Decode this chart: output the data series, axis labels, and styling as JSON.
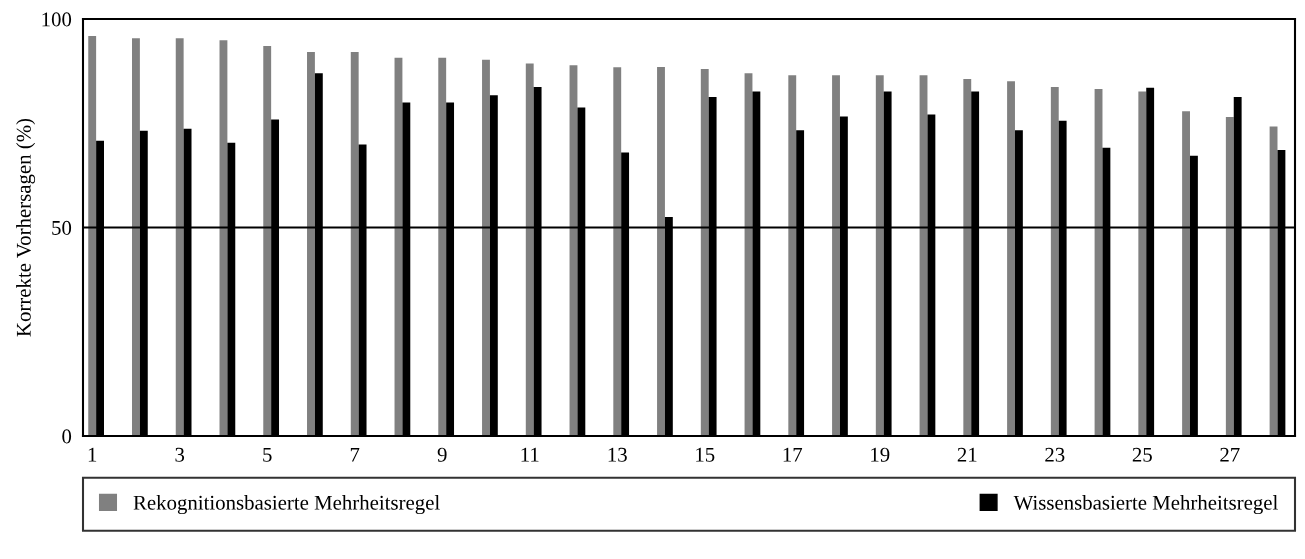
{
  "chart_data": {
    "type": "bar",
    "ylabel": "Korrekte Vorhersagen (%)",
    "categories": [
      "1",
      null,
      "3",
      null,
      "5",
      null,
      "7",
      null,
      "9",
      null,
      "11",
      null,
      "13",
      null,
      "15",
      null,
      "17",
      null,
      "19",
      null,
      "21",
      null,
      "23",
      null,
      "25",
      null,
      "27",
      null
    ],
    "series": [
      {
        "name": "Rekognitionsbasierte Mehrheitsregel",
        "color": "#808080",
        "values": [
          95.9,
          95.4,
          95.4,
          94.9,
          93.5,
          92.1,
          92.1,
          90.7,
          90.7,
          90.2,
          89.3,
          88.9,
          88.4,
          88.5,
          88.0,
          87.0,
          86.5,
          86.5,
          86.5,
          86.5,
          85.6,
          85.1,
          83.7,
          83.2,
          82.6,
          77.9,
          76.5,
          74.2
        ]
      },
      {
        "name": "Wissensbasierte Mehrheitsregel",
        "color": "#000000",
        "values": [
          70.8,
          73.2,
          73.7,
          70.3,
          75.9,
          87.0,
          69.9,
          80.0,
          80.0,
          81.7,
          83.7,
          78.8,
          68.0,
          52.5,
          81.3,
          82.6,
          73.3,
          76.6,
          82.6,
          77.1,
          82.6,
          73.3,
          75.6,
          69.1,
          83.5,
          67.2,
          81.3,
          68.6
        ]
      }
    ],
    "ylim": [
      0,
      100
    ],
    "yticks": [
      0,
      50,
      100
    ],
    "ref_lines": [
      {
        "axis": "y",
        "value": 50,
        "color": "#000000"
      }
    ],
    "grid": false,
    "legend": "bottom"
  }
}
